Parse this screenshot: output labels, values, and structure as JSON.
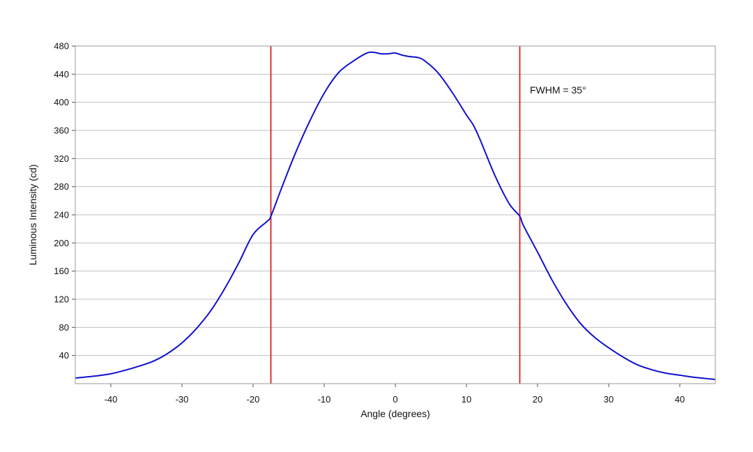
{
  "chart_data": {
    "type": "line",
    "xlabel": "Angle (degrees)",
    "ylabel": "Luminous Intensity (cd)",
    "xlim": [
      -45,
      45
    ],
    "ylim": [
      0,
      480
    ],
    "x_ticks": [
      -40,
      -30,
      -20,
      -10,
      0,
      10,
      20,
      30,
      40
    ],
    "y_ticks": [
      40,
      80,
      120,
      160,
      200,
      240,
      280,
      320,
      360,
      400,
      440,
      480
    ],
    "grid": "horizontal",
    "annotation": "FWHM = 35°",
    "vlines": [
      -17.5,
      17.5
    ],
    "colors": {
      "series": "#1010d0",
      "vline": "#d42020",
      "grid": "#c0c0c0",
      "frame": "#999999"
    },
    "series": [
      {
        "x": [
          -45,
          -42,
          -40,
          -38,
          -36,
          -34,
          -32,
          -30,
          -28,
          -26,
          -24,
          -22,
          -20,
          -18,
          -17.5,
          -16,
          -14,
          -12,
          -10,
          -8,
          -6,
          -4,
          -3,
          -2,
          -1,
          0,
          1,
          2,
          3,
          4,
          6,
          8,
          10,
          11,
          12,
          14,
          16,
          17.5,
          18,
          20,
          22,
          24,
          26,
          28,
          30,
          32,
          34,
          36,
          38,
          40,
          42,
          45
        ],
        "y": [
          8,
          11,
          14,
          19,
          25,
          32,
          43,
          58,
          78,
          103,
          135,
          172,
          212,
          231,
          238,
          278,
          329,
          374,
          413,
          442,
          458,
          470,
          471,
          469,
          469,
          470,
          467,
          465,
          464,
          460,
          442,
          414,
          382,
          367,
          345,
          296,
          256,
          238,
          225,
          187,
          148,
          114,
          86,
          66,
          51,
          38,
          27,
          20,
          15,
          12,
          9,
          6
        ]
      }
    ]
  }
}
